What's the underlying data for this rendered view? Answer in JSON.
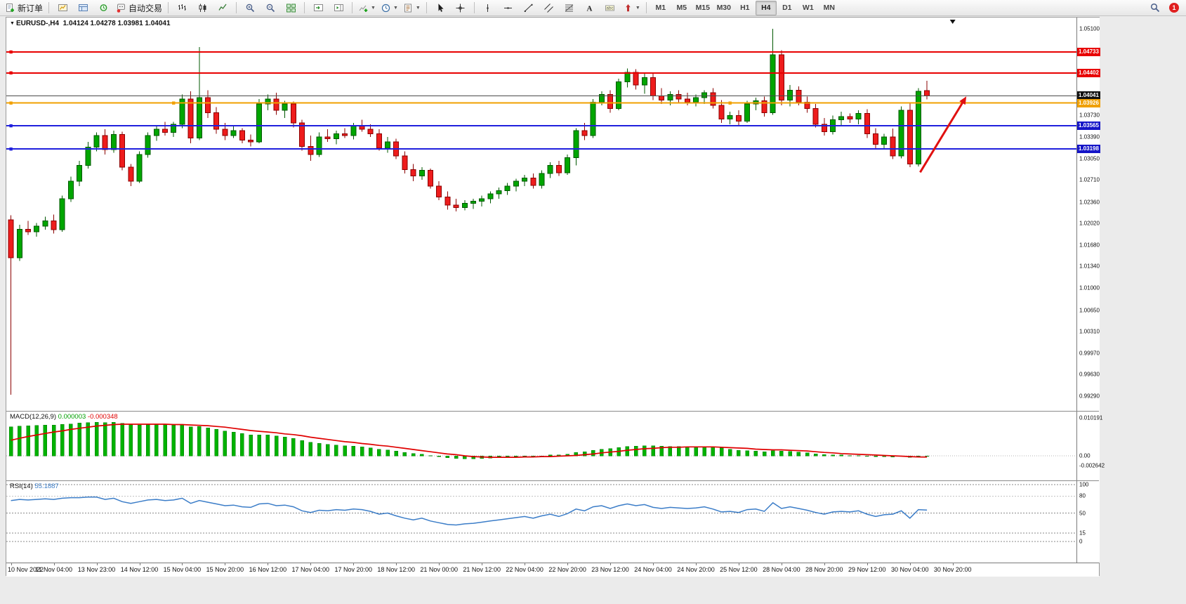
{
  "toolbar": {
    "new_order_label": "新订单",
    "auto_trading_label": "自动交易",
    "timeframes": [
      "M1",
      "M5",
      "M15",
      "M30",
      "H1",
      "H4",
      "D1",
      "W1",
      "MN"
    ],
    "active_timeframe": "H4",
    "notification_count": "1"
  },
  "chart": {
    "symbol_period": "EURUSD-,H4",
    "ohlc": "1.04124 1.04278 1.03981 1.04041"
  },
  "chart_data": {
    "type": "candlestick",
    "symbol": "EURUSD",
    "period": "H4",
    "visible_slots": 125,
    "label_step_slots": 5,
    "shift_marker_slot": 110,
    "colors": {
      "up": "#00a600",
      "down": "#ee1c1c",
      "up_edge": "#005800",
      "down_edge": "#8b0000",
      "macd_hist": "#00b200",
      "macd_signal": "#e00000",
      "rsi": "#3b7dc8",
      "arrow": "#e01010"
    },
    "price_axis_ticks": [
      {
        "v": 1.051,
        "label": "1.05100"
      },
      {
        "v": 1.0373,
        "label": "1.03730"
      },
      {
        "v": 1.0339,
        "label": "1.03390"
      },
      {
        "v": 1.0305,
        "label": "1.03050"
      },
      {
        "v": 1.0271,
        "label": "1.02710"
      },
      {
        "v": 1.0236,
        "label": "1.02360"
      },
      {
        "v": 1.0202,
        "label": "1.02020"
      },
      {
        "v": 1.0168,
        "label": "1.01680"
      },
      {
        "v": 1.0134,
        "label": "1.01340"
      },
      {
        "v": 1.01,
        "label": "1.01000"
      },
      {
        "v": 1.0065,
        "label": "1.00650"
      },
      {
        "v": 1.0031,
        "label": "1.00310"
      },
      {
        "v": 0.9997,
        "label": "0.99970"
      },
      {
        "v": 0.9963,
        "label": "0.99630"
      },
      {
        "v": 0.9929,
        "label": "0.99290"
      }
    ],
    "hlines": [
      {
        "price": 1.04733,
        "label": "1.04733",
        "color": "#e80000",
        "tag_bg": "#e80000",
        "width": 2,
        "anchors": [
          0
        ]
      },
      {
        "price": 1.04402,
        "label": "1.04402",
        "color": "#e80000",
        "tag_bg": "#e80000",
        "width": 2,
        "anchors": [
          0
        ]
      },
      {
        "price": 1.04041,
        "label": "1.04041",
        "color": "#4a4a4a",
        "tag_bg": "#111111",
        "width": 1,
        "anchors": []
      },
      {
        "price": 1.03926,
        "label": "1.03926",
        "color": "#f0a000",
        "tag_bg": "#f0a000",
        "width": 2,
        "anchors": [
          0,
          19,
          84
        ]
      },
      {
        "price": 1.03565,
        "label": "1.03565",
        "color": "#2020dd",
        "tag_bg": "#1515c8",
        "width": 2,
        "anchors": [
          0
        ]
      },
      {
        "price": 1.03198,
        "label": "1.03198",
        "color": "#2020dd",
        "tag_bg": "#1515c8",
        "width": 2,
        "anchors": [
          0
        ]
      }
    ],
    "arrow": {
      "from_slot": 106.2,
      "from_price": 1.0283,
      "to_slot": 111.6,
      "to_price": 1.0403
    },
    "time_labels": [
      "10 Nov 2022",
      "11 Nov 04:00",
      "13 Nov 23:00",
      "14 Nov 12:00",
      "15 Nov 04:00",
      "15 Nov 20:00",
      "16 Nov 12:00",
      "17 Nov 04:00",
      "17 Nov 20:00",
      "18 Nov 12:00",
      "21 Nov 00:00",
      "21 Nov 12:00",
      "22 Nov 04:00",
      "22 Nov 20:00",
      "23 Nov 12:00",
      "24 Nov 04:00",
      "24 Nov 20:00",
      "25 Nov 12:00",
      "28 Nov 04:00",
      "28 Nov 20:00",
      "29 Nov 12:00",
      "30 Nov 04:00",
      "30 Nov 20:00"
    ],
    "candles": [
      [
        1.0208,
        1.0215,
        0.9931,
        1.0148
      ],
      [
        1.0148,
        1.02,
        1.0143,
        1.0193
      ],
      [
        1.0193,
        1.0206,
        1.0184,
        1.0189
      ],
      [
        1.0189,
        1.0203,
        1.0181,
        1.0198
      ],
      [
        1.0198,
        1.0213,
        1.0192,
        1.0206
      ],
      [
        1.0206,
        1.0216,
        1.0186,
        1.0192
      ],
      [
        1.0192,
        1.0246,
        1.0189,
        1.0241
      ],
      [
        1.0241,
        1.0276,
        1.0236,
        1.0269
      ],
      [
        1.0269,
        1.0301,
        1.0261,
        1.0294
      ],
      [
        1.0294,
        1.0331,
        1.0289,
        1.0323
      ],
      [
        1.0323,
        1.0346,
        1.0316,
        1.0341
      ],
      [
        1.0341,
        1.0351,
        1.0311,
        1.0319
      ],
      [
        1.0319,
        1.0349,
        1.0314,
        1.0343
      ],
      [
        1.0343,
        1.0347,
        1.0286,
        1.0291
      ],
      [
        1.0291,
        1.0296,
        1.0261,
        1.0269
      ],
      [
        1.0269,
        1.0316,
        1.0266,
        1.0311
      ],
      [
        1.0311,
        1.0346,
        1.0306,
        1.0341
      ],
      [
        1.0341,
        1.0356,
        1.0333,
        1.0351
      ],
      [
        1.0351,
        1.0363,
        1.0341,
        1.0346
      ],
      [
        1.0346,
        1.0363,
        1.0339,
        1.0359
      ],
      [
        1.0359,
        1.0406,
        1.0353,
        1.0399
      ],
      [
        1.0399,
        1.0411,
        1.0329,
        1.0337
      ],
      [
        1.0337,
        1.0481,
        1.0334,
        1.0401
      ],
      [
        1.0401,
        1.0413,
        1.0369,
        1.0377
      ],
      [
        1.0377,
        1.0386,
        1.0344,
        1.0351
      ],
      [
        1.0351,
        1.0361,
        1.0334,
        1.0341
      ],
      [
        1.0341,
        1.0356,
        1.0337,
        1.0349
      ],
      [
        1.0349,
        1.0353,
        1.0329,
        1.0334
      ],
      [
        1.0334,
        1.0343,
        1.0324,
        1.0331
      ],
      [
        1.0331,
        1.0399,
        1.0329,
        1.0391
      ],
      [
        1.0391,
        1.0406,
        1.0381,
        1.0399
      ],
      [
        1.0399,
        1.0409,
        1.0374,
        1.0381
      ],
      [
        1.0381,
        1.0396,
        1.0369,
        1.0391
      ],
      [
        1.0391,
        1.0395,
        1.0354,
        1.0361
      ],
      [
        1.0361,
        1.0366,
        1.0317,
        1.0324
      ],
      [
        1.0324,
        1.0341,
        1.0301,
        1.0311
      ],
      [
        1.0311,
        1.0346,
        1.0307,
        1.0339
      ],
      [
        1.0339,
        1.0351,
        1.0331,
        1.0336
      ],
      [
        1.0336,
        1.0349,
        1.0327,
        1.0344
      ],
      [
        1.0344,
        1.0353,
        1.0337,
        1.0341
      ],
      [
        1.0341,
        1.0361,
        1.0335,
        1.0356
      ],
      [
        1.0356,
        1.0366,
        1.0347,
        1.0351
      ],
      [
        1.0351,
        1.0359,
        1.0339,
        1.0344
      ],
      [
        1.0344,
        1.0351,
        1.0317,
        1.0321
      ],
      [
        1.0321,
        1.0339,
        1.0314,
        1.0331
      ],
      [
        1.0331,
        1.0336,
        1.0304,
        1.0309
      ],
      [
        1.0309,
        1.0316,
        1.0281,
        1.0287
      ],
      [
        1.0287,
        1.0296,
        1.0269,
        1.0277
      ],
      [
        1.0277,
        1.0291,
        1.0271,
        1.0286
      ],
      [
        1.0286,
        1.0289,
        1.0257,
        1.0261
      ],
      [
        1.0261,
        1.0269,
        1.0239,
        1.0244
      ],
      [
        1.0244,
        1.0253,
        1.0224,
        1.0231
      ],
      [
        1.0231,
        1.0241,
        1.0221,
        1.0227
      ],
      [
        1.0227,
        1.0239,
        1.0223,
        1.0234
      ],
      [
        1.0234,
        1.0241,
        1.0225,
        1.0237
      ],
      [
        1.0237,
        1.0246,
        1.0229,
        1.0241
      ],
      [
        1.0241,
        1.0253,
        1.0234,
        1.0249
      ],
      [
        1.0249,
        1.0259,
        1.0241,
        1.0254
      ],
      [
        1.0254,
        1.0266,
        1.0247,
        1.0261
      ],
      [
        1.0261,
        1.0273,
        1.0253,
        1.0269
      ],
      [
        1.0269,
        1.0279,
        1.0261,
        1.0274
      ],
      [
        1.0274,
        1.0281,
        1.0257,
        1.0262
      ],
      [
        1.0262,
        1.0286,
        1.0257,
        1.0281
      ],
      [
        1.0281,
        1.0299,
        1.0274,
        1.0294
      ],
      [
        1.0294,
        1.0301,
        1.0277,
        1.0282
      ],
      [
        1.0282,
        1.0311,
        1.0279,
        1.0306
      ],
      [
        1.0306,
        1.0353,
        1.0294,
        1.0349
      ],
      [
        1.0349,
        1.0361,
        1.0334,
        1.0341
      ],
      [
        1.0341,
        1.0399,
        1.0337,
        1.0394
      ],
      [
        1.0394,
        1.0411,
        1.0389,
        1.0406
      ],
      [
        1.0406,
        1.0413,
        1.0377,
        1.0384
      ],
      [
        1.0384,
        1.0431,
        1.0381,
        1.0426
      ],
      [
        1.0426,
        1.0447,
        1.0417,
        1.0441
      ],
      [
        1.0441,
        1.0446,
        1.0414,
        1.0421
      ],
      [
        1.0421,
        1.0439,
        1.0407,
        1.0433
      ],
      [
        1.0433,
        1.0441,
        1.0397,
        1.0404
      ],
      [
        1.0404,
        1.0416,
        1.0391,
        1.0397
      ],
      [
        1.0397,
        1.0411,
        1.0389,
        1.0406
      ],
      [
        1.0406,
        1.0413,
        1.0394,
        1.0399
      ],
      [
        1.0399,
        1.0409,
        1.0389,
        1.0394
      ],
      [
        1.0394,
        1.0406,
        1.0387,
        1.0401
      ],
      [
        1.0401,
        1.0413,
        1.0391,
        1.0409
      ],
      [
        1.0409,
        1.0416,
        1.0384,
        1.0389
      ],
      [
        1.0389,
        1.0397,
        1.0361,
        1.0367
      ],
      [
        1.0367,
        1.0379,
        1.0359,
        1.0373
      ],
      [
        1.0373,
        1.0381,
        1.0357,
        1.0364
      ],
      [
        1.0364,
        1.0396,
        1.0361,
        1.0391
      ],
      [
        1.0391,
        1.0401,
        1.0381,
        1.0396
      ],
      [
        1.0396,
        1.0403,
        1.0371,
        1.0377
      ],
      [
        1.0377,
        1.051,
        1.0374,
        1.0469
      ],
      [
        1.0469,
        1.0476,
        1.0389,
        1.0397
      ],
      [
        1.0397,
        1.0421,
        1.0387,
        1.0413
      ],
      [
        1.0413,
        1.0419,
        1.0389,
        1.0394
      ],
      [
        1.0394,
        1.0403,
        1.0377,
        1.0384
      ],
      [
        1.0384,
        1.0391,
        1.0354,
        1.0359
      ],
      [
        1.0359,
        1.0369,
        1.0341,
        1.0347
      ],
      [
        1.0347,
        1.0373,
        1.0343,
        1.0366
      ],
      [
        1.0366,
        1.0379,
        1.0357,
        1.0371
      ],
      [
        1.0371,
        1.0376,
        1.0361,
        1.0367
      ],
      [
        1.0367,
        1.0381,
        1.0359,
        1.0376
      ],
      [
        1.0376,
        1.0383,
        1.0337,
        1.0344
      ],
      [
        1.0344,
        1.0353,
        1.0321,
        1.0327
      ],
      [
        1.0327,
        1.0344,
        1.0319,
        1.0339
      ],
      [
        1.0339,
        1.0352,
        1.0304,
        1.0309
      ],
      [
        1.0309,
        1.0387,
        1.0305,
        1.0381
      ],
      [
        1.0381,
        1.0394,
        1.0291,
        1.0296
      ],
      [
        1.0296,
        1.0416,
        1.0292,
        1.0411
      ],
      [
        1.04124,
        1.04278,
        1.03981,
        1.04041
      ]
    ],
    "macd": {
      "name": "MACD(12,26,9)",
      "value_main": "0.000003",
      "value_signal": "-0.000348",
      "axis_labels": [
        {
          "v": 0.010191,
          "label": "0.010191"
        },
        {
          "v": 0,
          "label": "0.00"
        },
        {
          "v": -0.002642,
          "label": "-0.002642"
        }
      ],
      "histogram": [
        0.0078,
        0.008,
        0.0081,
        0.0082,
        0.0083,
        0.0083,
        0.0085,
        0.0086,
        0.0088,
        0.0089,
        0.009,
        0.0089,
        0.009,
        0.0087,
        0.0084,
        0.0083,
        0.0084,
        0.0085,
        0.0084,
        0.0083,
        0.0084,
        0.0078,
        0.0079,
        0.0075,
        0.0071,
        0.0067,
        0.0064,
        0.006,
        0.0056,
        0.0056,
        0.0056,
        0.0053,
        0.0051,
        0.0047,
        0.0041,
        0.0036,
        0.0034,
        0.0031,
        0.0029,
        0.0027,
        0.0026,
        0.0024,
        0.0021,
        0.0018,
        0.0016,
        0.0013,
        0.0009,
        0.0006,
        0.0004,
        0.0001,
        -0.0002,
        -0.0005,
        -0.0007,
        -0.0008,
        -0.0008,
        -0.0007,
        -0.0006,
        -0.0004,
        -0.0003,
        -0.0002,
        -0.0001,
        -0.0002,
        0.0,
        0.0002,
        0.0002,
        0.0004,
        0.0009,
        0.0011,
        0.0015,
        0.0018,
        0.0019,
        0.0022,
        0.0025,
        0.0026,
        0.0027,
        0.0027,
        0.0026,
        0.0025,
        0.0025,
        0.0024,
        0.0024,
        0.0024,
        0.0023,
        0.0021,
        0.0018,
        0.0015,
        0.0014,
        0.0013,
        0.0011,
        0.0014,
        0.0013,
        0.0012,
        0.001,
        0.0008,
        0.0005,
        0.0003,
        0.0002,
        0.0002,
        0.0001,
        0.0001,
        0.0,
        -0.0002,
        -0.0002,
        -0.0003,
        -0.0001,
        -0.0004,
        -0.0001,
        3e-06
      ],
      "signal": [
        0.0042,
        0.0047,
        0.0052,
        0.0056,
        0.006,
        0.0064,
        0.0067,
        0.0071,
        0.0074,
        0.0077,
        0.008,
        0.0082,
        0.0084,
        0.0085,
        0.0085,
        0.0085,
        0.0085,
        0.0085,
        0.0085,
        0.0084,
        0.0084,
        0.0083,
        0.0082,
        0.0081,
        0.0079,
        0.0077,
        0.0074,
        0.0071,
        0.0068,
        0.0066,
        0.0064,
        0.0062,
        0.0059,
        0.0057,
        0.0054,
        0.005,
        0.0047,
        0.0044,
        0.0041,
        0.0038,
        0.0036,
        0.0033,
        0.0031,
        0.0028,
        0.0026,
        0.0023,
        0.002,
        0.0017,
        0.0014,
        0.0011,
        0.0008,
        0.0005,
        0.0003,
        0.0,
        -0.0002,
        -0.0003,
        -0.0004,
        -0.0004,
        -0.0004,
        -0.0004,
        -0.0003,
        -0.0003,
        -0.0002,
        -0.0002,
        -0.0001,
        0.0,
        0.0001,
        0.0003,
        0.0005,
        0.0008,
        0.001,
        0.0012,
        0.0015,
        0.0017,
        0.0019,
        0.002,
        0.0022,
        0.0023,
        0.0023,
        0.0024,
        0.0024,
        0.0024,
        0.0024,
        0.0023,
        0.0022,
        0.0021,
        0.002,
        0.0018,
        0.0017,
        0.0016,
        0.0016,
        0.0015,
        0.0014,
        0.0013,
        0.0011,
        0.0009,
        0.0008,
        0.0006,
        0.0005,
        0.0004,
        0.0003,
        0.0002,
        0.0001,
        0.0,
        -0.0001,
        -0.0002,
        -0.0003,
        -0.000348
      ]
    },
    "rsi": {
      "name": "RSI(14)",
      "value": "55.1887",
      "levels": [
        100,
        80,
        50,
        15,
        0
      ],
      "axis_labels": [
        "100",
        "80",
        "50",
        "15",
        "0"
      ],
      "series": [
        72,
        74,
        73,
        74,
        75,
        74,
        76,
        77,
        77,
        78,
        78,
        74,
        76,
        70,
        67,
        70,
        73,
        74,
        72,
        73,
        76,
        67,
        72,
        69,
        66,
        63,
        64,
        61,
        60,
        66,
        67,
        63,
        64,
        61,
        54,
        51,
        55,
        54,
        56,
        55,
        57,
        56,
        53,
        48,
        50,
        45,
        41,
        38,
        41,
        36,
        33,
        30,
        29,
        31,
        32,
        34,
        36,
        38,
        40,
        42,
        44,
        41,
        45,
        48,
        44,
        49,
        57,
        54,
        61,
        63,
        58,
        63,
        66,
        63,
        65,
        60,
        58,
        60,
        59,
        58,
        59,
        61,
        57,
        52,
        53,
        51,
        56,
        57,
        53,
        68,
        58,
        61,
        58,
        55,
        51,
        48,
        52,
        53,
        52,
        54,
        48,
        44,
        47,
        48,
        54,
        41,
        56,
        55.19
      ]
    }
  }
}
